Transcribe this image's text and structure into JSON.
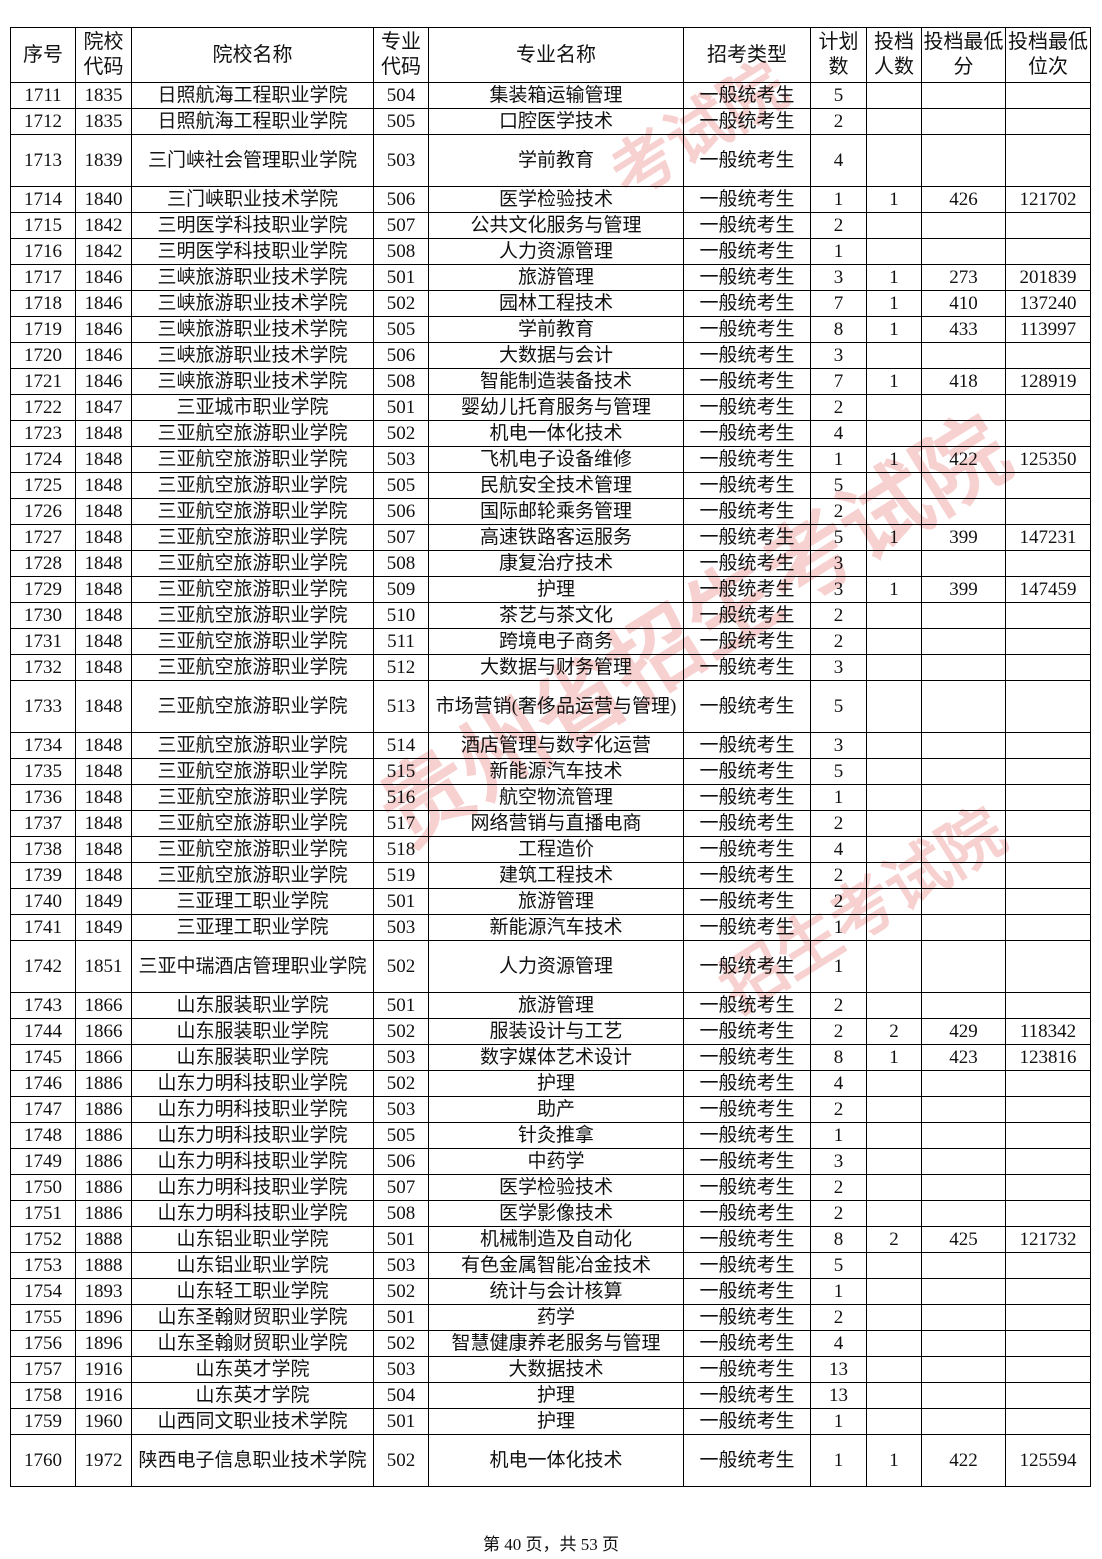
{
  "headers": [
    "序号",
    "院校代码",
    "院校名称",
    "专业代码",
    "专业名称",
    "招考类型",
    "计划数",
    "投档人数",
    "投档最低分",
    "投档最低位次"
  ],
  "rows": [
    [
      "1711",
      "1835",
      "日照航海工程职业学院",
      "504",
      "集装箱运输管理",
      "一般统考生",
      "5",
      "",
      "",
      ""
    ],
    [
      "1712",
      "1835",
      "日照航海工程职业学院",
      "505",
      "口腔医学技术",
      "一般统考生",
      "2",
      "",
      "",
      ""
    ],
    [
      "1713",
      "1839",
      "三门峡社会管理职业学院",
      "503",
      "学前教育",
      "一般统考生",
      "4",
      "",
      "",
      ""
    ],
    [
      "1714",
      "1840",
      "三门峡职业技术学院",
      "506",
      "医学检验技术",
      "一般统考生",
      "1",
      "1",
      "426",
      "121702"
    ],
    [
      "1715",
      "1842",
      "三明医学科技职业学院",
      "507",
      "公共文化服务与管理",
      "一般统考生",
      "2",
      "",
      "",
      ""
    ],
    [
      "1716",
      "1842",
      "三明医学科技职业学院",
      "508",
      "人力资源管理",
      "一般统考生",
      "1",
      "",
      "",
      ""
    ],
    [
      "1717",
      "1846",
      "三峡旅游职业技术学院",
      "501",
      "旅游管理",
      "一般统考生",
      "3",
      "1",
      "273",
      "201839"
    ],
    [
      "1718",
      "1846",
      "三峡旅游职业技术学院",
      "502",
      "园林工程技术",
      "一般统考生",
      "7",
      "1",
      "410",
      "137240"
    ],
    [
      "1719",
      "1846",
      "三峡旅游职业技术学院",
      "505",
      "学前教育",
      "一般统考生",
      "8",
      "1",
      "433",
      "113997"
    ],
    [
      "1720",
      "1846",
      "三峡旅游职业技术学院",
      "506",
      "大数据与会计",
      "一般统考生",
      "3",
      "",
      "",
      ""
    ],
    [
      "1721",
      "1846",
      "三峡旅游职业技术学院",
      "508",
      "智能制造装备技术",
      "一般统考生",
      "7",
      "1",
      "418",
      "128919"
    ],
    [
      "1722",
      "1847",
      "三亚城市职业学院",
      "501",
      "婴幼儿托育服务与管理",
      "一般统考生",
      "2",
      "",
      "",
      ""
    ],
    [
      "1723",
      "1848",
      "三亚航空旅游职业学院",
      "502",
      "机电一体化技术",
      "一般统考生",
      "4",
      "",
      "",
      ""
    ],
    [
      "1724",
      "1848",
      "三亚航空旅游职业学院",
      "503",
      "飞机电子设备维修",
      "一般统考生",
      "1",
      "1",
      "422",
      "125350"
    ],
    [
      "1725",
      "1848",
      "三亚航空旅游职业学院",
      "505",
      "民航安全技术管理",
      "一般统考生",
      "5",
      "",
      "",
      ""
    ],
    [
      "1726",
      "1848",
      "三亚航空旅游职业学院",
      "506",
      "国际邮轮乘务管理",
      "一般统考生",
      "2",
      "",
      "",
      ""
    ],
    [
      "1727",
      "1848",
      "三亚航空旅游职业学院",
      "507",
      "高速铁路客运服务",
      "一般统考生",
      "5",
      "1",
      "399",
      "147231"
    ],
    [
      "1728",
      "1848",
      "三亚航空旅游职业学院",
      "508",
      "康复治疗技术",
      "一般统考生",
      "3",
      "",
      "",
      ""
    ],
    [
      "1729",
      "1848",
      "三亚航空旅游职业学院",
      "509",
      "护理",
      "一般统考生",
      "3",
      "1",
      "399",
      "147459"
    ],
    [
      "1730",
      "1848",
      "三亚航空旅游职业学院",
      "510",
      "茶艺与茶文化",
      "一般统考生",
      "2",
      "",
      "",
      ""
    ],
    [
      "1731",
      "1848",
      "三亚航空旅游职业学院",
      "511",
      "跨境电子商务",
      "一般统考生",
      "2",
      "",
      "",
      ""
    ],
    [
      "1732",
      "1848",
      "三亚航空旅游职业学院",
      "512",
      "大数据与财务管理",
      "一般统考生",
      "3",
      "",
      "",
      ""
    ],
    [
      "1733",
      "1848",
      "三亚航空旅游职业学院",
      "513",
      "市场营销(奢侈品运营与管理)",
      "一般统考生",
      "5",
      "",
      "",
      ""
    ],
    [
      "1734",
      "1848",
      "三亚航空旅游职业学院",
      "514",
      "酒店管理与数字化运营",
      "一般统考生",
      "3",
      "",
      "",
      ""
    ],
    [
      "1735",
      "1848",
      "三亚航空旅游职业学院",
      "515",
      "新能源汽车技术",
      "一般统考生",
      "5",
      "",
      "",
      ""
    ],
    [
      "1736",
      "1848",
      "三亚航空旅游职业学院",
      "516",
      "航空物流管理",
      "一般统考生",
      "1",
      "",
      "",
      ""
    ],
    [
      "1737",
      "1848",
      "三亚航空旅游职业学院",
      "517",
      "网络营销与直播电商",
      "一般统考生",
      "2",
      "",
      "",
      ""
    ],
    [
      "1738",
      "1848",
      "三亚航空旅游职业学院",
      "518",
      "工程造价",
      "一般统考生",
      "4",
      "",
      "",
      ""
    ],
    [
      "1739",
      "1848",
      "三亚航空旅游职业学院",
      "519",
      "建筑工程技术",
      "一般统考生",
      "2",
      "",
      "",
      ""
    ],
    [
      "1740",
      "1849",
      "三亚理工职业学院",
      "501",
      "旅游管理",
      "一般统考生",
      "2",
      "",
      "",
      ""
    ],
    [
      "1741",
      "1849",
      "三亚理工职业学院",
      "503",
      "新能源汽车技术",
      "一般统考生",
      "1",
      "",
      "",
      ""
    ],
    [
      "1742",
      "1851",
      "三亚中瑞酒店管理职业学院",
      "502",
      "人力资源管理",
      "一般统考生",
      "1",
      "",
      "",
      ""
    ],
    [
      "1743",
      "1866",
      "山东服装职业学院",
      "501",
      "旅游管理",
      "一般统考生",
      "2",
      "",
      "",
      ""
    ],
    [
      "1744",
      "1866",
      "山东服装职业学院",
      "502",
      "服装设计与工艺",
      "一般统考生",
      "2",
      "2",
      "429",
      "118342"
    ],
    [
      "1745",
      "1866",
      "山东服装职业学院",
      "503",
      "数字媒体艺术设计",
      "一般统考生",
      "8",
      "1",
      "423",
      "123816"
    ],
    [
      "1746",
      "1886",
      "山东力明科技职业学院",
      "502",
      "护理",
      "一般统考生",
      "4",
      "",
      "",
      ""
    ],
    [
      "1747",
      "1886",
      "山东力明科技职业学院",
      "503",
      "助产",
      "一般统考生",
      "2",
      "",
      "",
      ""
    ],
    [
      "1748",
      "1886",
      "山东力明科技职业学院",
      "505",
      "针灸推拿",
      "一般统考生",
      "1",
      "",
      "",
      ""
    ],
    [
      "1749",
      "1886",
      "山东力明科技职业学院",
      "506",
      "中药学",
      "一般统考生",
      "3",
      "",
      "",
      ""
    ],
    [
      "1750",
      "1886",
      "山东力明科技职业学院",
      "507",
      "医学检验技术",
      "一般统考生",
      "2",
      "",
      "",
      ""
    ],
    [
      "1751",
      "1886",
      "山东力明科技职业学院",
      "508",
      "医学影像技术",
      "一般统考生",
      "2",
      "",
      "",
      ""
    ],
    [
      "1752",
      "1888",
      "山东铝业职业学院",
      "501",
      "机械制造及自动化",
      "一般统考生",
      "8",
      "2",
      "425",
      "121732"
    ],
    [
      "1753",
      "1888",
      "山东铝业职业学院",
      "503",
      "有色金属智能冶金技术",
      "一般统考生",
      "5",
      "",
      "",
      ""
    ],
    [
      "1754",
      "1893",
      "山东轻工职业学院",
      "502",
      "统计与会计核算",
      "一般统考生",
      "1",
      "",
      "",
      ""
    ],
    [
      "1755",
      "1896",
      "山东圣翰财贸职业学院",
      "501",
      "药学",
      "一般统考生",
      "2",
      "",
      "",
      ""
    ],
    [
      "1756",
      "1896",
      "山东圣翰财贸职业学院",
      "502",
      "智慧健康养老服务与管理",
      "一般统考生",
      "4",
      "",
      "",
      ""
    ],
    [
      "1757",
      "1916",
      "山东英才学院",
      "503",
      "大数据技术",
      "一般统考生",
      "13",
      "",
      "",
      ""
    ],
    [
      "1758",
      "1916",
      "山东英才学院",
      "504",
      "护理",
      "一般统考生",
      "13",
      "",
      "",
      ""
    ],
    [
      "1759",
      "1960",
      "山西同文职业技术学院",
      "501",
      "护理",
      "一般统考生",
      "1",
      "",
      "",
      ""
    ],
    [
      "1760",
      "1972",
      "陕西电子信息职业技术学院",
      "502",
      "机电一体化技术",
      "一般统考生",
      "1",
      "1",
      "422",
      "125594"
    ]
  ],
  "tall_rows": [
    "1713",
    "1733",
    "1742",
    "1760"
  ],
  "footer": "第 40 页，共 53 页",
  "watermark": "贵州省招生考试院",
  "watermark_color": "#dc2828"
}
